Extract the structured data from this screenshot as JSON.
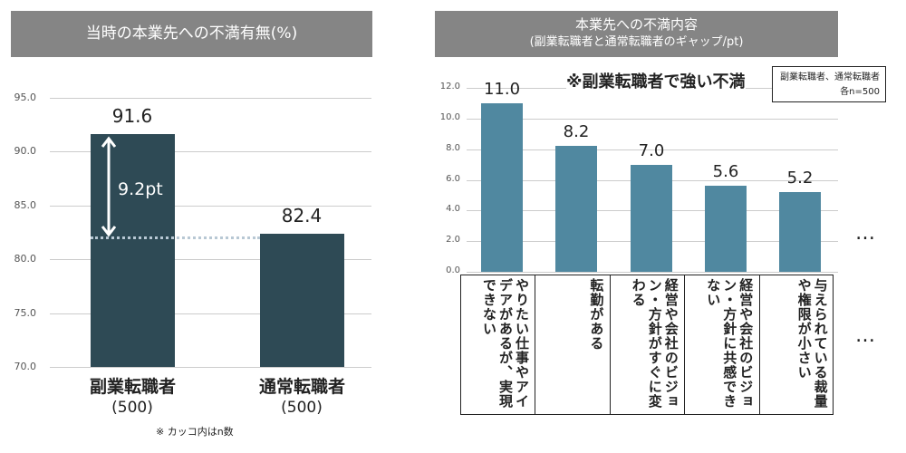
{
  "left": {
    "title": "当時の本業先への不満有無(%)",
    "yticks": [
      "95.0",
      "90.0",
      "85.0",
      "80.0",
      "75.0",
      "70.0"
    ],
    "chart_data": {
      "type": "bar",
      "categories": [
        "副業転職者",
        "通常転職者"
      ],
      "values": [
        91.6,
        82.4
      ],
      "value_labels": [
        "91.6",
        "82.4"
      ],
      "sample_sizes": [
        "(500)",
        "(500)"
      ],
      "ylim": [
        70,
        95
      ],
      "annotation": "9.2pt"
    },
    "footnote": "※ カッコ内はn数",
    "bar_color": "#2e4a55"
  },
  "right": {
    "title": "本業先への不満内容",
    "subtitle": "(副業転職者と通常転職者のギャップ/pt)",
    "note": "※副業転職者で強い不満",
    "legend_line1": "副業転職者、通常転職者",
    "legend_line2": "各n=500",
    "yticks": [
      "12.0",
      "10.0",
      "8.0",
      "6.0",
      "4.0",
      "2.0",
      "0.0"
    ],
    "chart_data": {
      "type": "bar",
      "categories": [
        "やりたい仕事やアイデアがあるが、実現できない",
        "転勤がある",
        "経営や会社のビジョン・方針がすぐに変わる",
        "経営や会社のビジョン・方針に共感できない",
        "与えられている裁量や権限が小さい"
      ],
      "values": [
        11.0,
        8.2,
        7.0,
        5.6,
        5.2
      ],
      "value_labels": [
        "11.0",
        "8.2",
        "7.0",
        "5.6",
        "5.2"
      ],
      "ylim": [
        0,
        12
      ]
    },
    "ellipsis": "…",
    "bar_color": "#5088a0"
  }
}
